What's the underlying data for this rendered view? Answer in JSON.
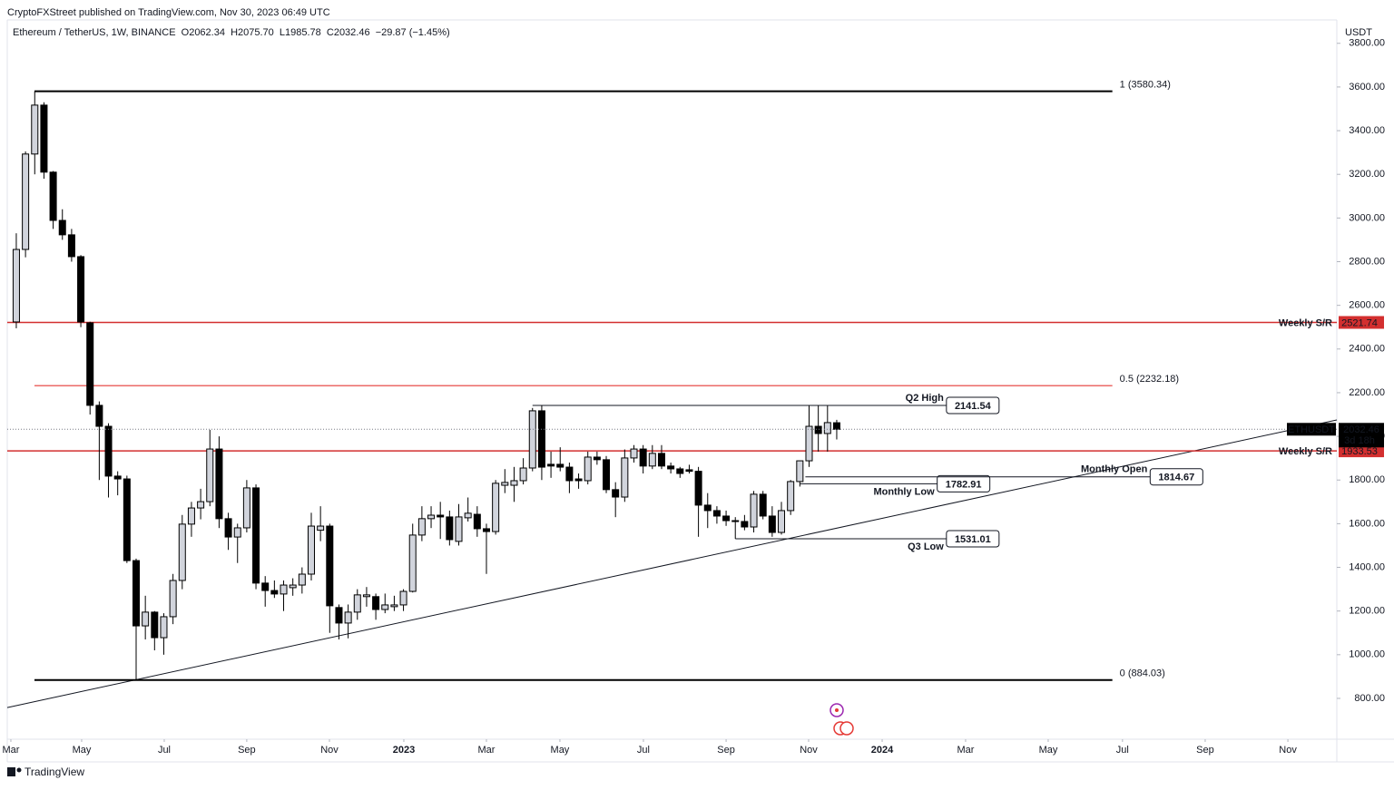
{
  "publisher": "CryptoFXStreet published on TradingView.com, Nov 30, 2023 06:49 UTC",
  "brand": "TradingView",
  "chart_data": {
    "type": "candlestick",
    "legend_text": "Ethereum / TetherUS, 1W, BINANCE  O2062.34  H2075.70  L1985.78  C2032.46  −29.87 (−1.45%)",
    "currency": "USDT",
    "symbol": "ETHUSDT",
    "countdown": "3d 18h",
    "x": [
      0,
      1,
      2,
      3,
      4,
      5,
      6,
      7,
      8,
      9,
      10,
      11,
      12,
      13,
      14,
      15,
      16,
      17,
      18,
      19,
      20,
      21,
      22,
      23,
      24,
      25,
      26,
      27,
      28,
      29,
      30,
      31,
      32,
      33,
      34,
      35,
      36,
      37,
      38,
      39,
      40,
      41,
      42,
      43,
      44,
      45,
      46,
      47,
      48,
      49,
      50,
      51,
      52,
      53,
      54,
      55,
      56,
      57,
      58,
      59,
      60,
      61,
      62,
      63,
      64,
      65,
      66,
      67,
      68,
      69,
      70,
      71,
      72,
      73,
      74,
      75,
      76,
      77,
      78,
      79,
      80,
      81,
      82,
      83,
      84,
      85,
      86,
      87,
      88,
      89
    ],
    "open": [
      2524,
      2856,
      3293,
      3517,
      3210,
      2989,
      2923,
      2823,
      2520,
      2142,
      2046,
      1818,
      1805,
      1431,
      1132,
      1195,
      1078,
      1174,
      1340,
      1598,
      1672,
      1701,
      1942,
      1623,
      1539,
      1581,
      1764,
      1328,
      1294,
      1278,
      1307,
      1319,
      1369,
      1570,
      1589,
      1216,
      1145,
      1195,
      1266,
      1266,
      1207,
      1220,
      1228,
      1290,
      1548,
      1623,
      1639,
      1631,
      1519,
      1627,
      1643,
      1577,
      1564,
      1776,
      1776,
      1797,
      1855,
      2117,
      1872,
      1872,
      1859,
      1805,
      1797,
      1905,
      1893,
      1756,
      1722,
      1901,
      1942,
      1864,
      1922,
      1864,
      1851,
      1847,
      1840,
      1685,
      1660,
      1635,
      1614,
      1610,
      1585,
      1735,
      1635,
      1560,
      1660,
      1793,
      1888,
      2046,
      2013,
      2062.34
    ],
    "high": [
      2930,
      3305,
      3580,
      3530,
      3215,
      3040,
      2950,
      2830,
      2525,
      2160,
      2060,
      1840,
      1820,
      1440,
      1270,
      1200,
      1190,
      1370,
      1640,
      1700,
      1760,
      2030,
      2000,
      1650,
      1600,
      1800,
      1780,
      1360,
      1340,
      1340,
      1350,
      1400,
      1650,
      1680,
      1600,
      1230,
      1230,
      1300,
      1310,
      1280,
      1280,
      1270,
      1300,
      1600,
      1680,
      1680,
      1700,
      1660,
      1690,
      1720,
      1680,
      1600,
      1800,
      1850,
      1860,
      1900,
      2130,
      2141.54,
      1930,
      1950,
      1880,
      1830,
      1930,
      1930,
      1910,
      1790,
      1940,
      1960,
      1960,
      1960,
      1960,
      1880,
      1860,
      1870,
      1860,
      1740,
      1680,
      1660,
      1630,
      1640,
      1750,
      1750,
      1680,
      1700,
      1800,
      1870,
      2141,
      2141,
      2140,
      2075.7
    ],
    "low": [
      2495,
      2820,
      3200,
      3180,
      2950,
      2900,
      2800,
      2500,
      2100,
      1800,
      1720,
      1730,
      1420,
      884.03,
      1070,
      1020,
      1000,
      1140,
      1300,
      1540,
      1620,
      1680,
      1580,
      1480,
      1420,
      1560,
      1300,
      1220,
      1260,
      1200,
      1270,
      1280,
      1340,
      1520,
      1100,
      1070,
      1075,
      1160,
      1220,
      1160,
      1190,
      1200,
      1200,
      1285,
      1520,
      1580,
      1530,
      1500,
      1500,
      1610,
      1540,
      1370,
      1550,
      1740,
      1700,
      1780,
      1840,
      1800,
      1810,
      1840,
      1740,
      1760,
      1780,
      1870,
      1740,
      1630,
      1700,
      1880,
      1830,
      1850,
      1850,
      1830,
      1810,
      1830,
      1540,
      1580,
      1600,
      1590,
      1531.01,
      1570,
      1560,
      1620,
      1540,
      1550,
      1640,
      1770,
      1860,
      1930,
      1930,
      1985.78
    ],
    "close": [
      2856,
      3293,
      3517,
      3210,
      2989,
      2923,
      2823,
      2524,
      2142,
      2046,
      1818,
      1805,
      1431,
      1132,
      1195,
      1078,
      1174,
      1340,
      1598,
      1672,
      1701,
      1942,
      1623,
      1539,
      1581,
      1764,
      1328,
      1294,
      1278,
      1319,
      1319,
      1369,
      1589,
      1589,
      1224,
      1145,
      1195,
      1274,
      1274,
      1207,
      1228,
      1228,
      1290,
      1548,
      1623,
      1639,
      1631,
      1527,
      1631,
      1648,
      1577,
      1564,
      1785,
      1789,
      1797,
      1855,
      2117,
      1859,
      1864,
      1859,
      1797,
      1797,
      1905,
      1893,
      1756,
      1722,
      1901,
      1942,
      1864,
      1922,
      1864,
      1851,
      1830,
      1840,
      1685,
      1660,
      1635,
      1614,
      1610,
      1585,
      1735,
      1635,
      1560,
      1660,
      1793,
      1888,
      2046,
      2013,
      2063,
      2032.46
    ],
    "up_color": "#d1d4dc",
    "down_color": "#000000",
    "xlim": [
      -0.98,
      143.25
    ],
    "xticks": [
      {
        "value": -0.59,
        "label": "Mar"
      },
      {
        "value": 7.09,
        "label": "May"
      },
      {
        "value": 16.05,
        "label": "Jul"
      },
      {
        "value": 25.0,
        "label": "Sep"
      },
      {
        "value": 33.97,
        "label": "Nov"
      },
      {
        "value": 42.04,
        "label": "2023"
      },
      {
        "value": 51.0,
        "label": "Mar"
      },
      {
        "value": 58.97,
        "label": "May"
      },
      {
        "value": 68.03,
        "label": "Jul"
      },
      {
        "value": 77.0,
        "label": "Sep"
      },
      {
        "value": 85.95,
        "label": "Nov"
      },
      {
        "value": 93.93,
        "label": "2024"
      },
      {
        "value": 102.98,
        "label": "Mar"
      },
      {
        "value": 111.94,
        "label": "May"
      },
      {
        "value": 120.0,
        "label": "Jul"
      },
      {
        "value": 128.97,
        "label": "Sep"
      },
      {
        "value": 137.94,
        "label": "Nov"
      }
    ],
    "ylim": [
      613,
      3907
    ],
    "yticks": [
      {
        "value": 800,
        "label": "800.00"
      },
      {
        "value": 1000,
        "label": "1000.00"
      },
      {
        "value": 1200,
        "label": "1200.00"
      },
      {
        "value": 1400,
        "label": "1400.00"
      },
      {
        "value": 1600,
        "label": "1600.00"
      },
      {
        "value": 1800,
        "label": "1800.00"
      },
      {
        "value": 2000,
        "label": "2000.00"
      },
      {
        "value": 2200,
        "label": "2200.00"
      },
      {
        "value": 2400,
        "label": "2400.00"
      },
      {
        "value": 2600,
        "label": "2600.00"
      },
      {
        "value": 2800,
        "label": "2800.00"
      },
      {
        "value": 3000,
        "label": "3000.00"
      },
      {
        "value": 3200,
        "label": "3200.00"
      },
      {
        "value": 3400,
        "label": "3400.00"
      },
      {
        "value": 3600,
        "label": "3600.00"
      },
      {
        "value": 3800,
        "label": "3800.00"
      }
    ],
    "fib_levels": [
      {
        "label": "1 (3580.34)",
        "value": 3580.34,
        "color": "#000000",
        "x_start": 1.97,
        "x_end": 118.9
      },
      {
        "label": "0.5 (2232.18)",
        "value": 2232.18,
        "color": "#e53935",
        "x_start": 1.97,
        "x_end": 118.9
      },
      {
        "label": "0 (884.03)",
        "value": 884.03,
        "color": "#000000",
        "x_start": 1.97,
        "x_end": 118.9
      }
    ],
    "sr_lines": [
      {
        "label": "Weekly S/R",
        "value": 2521.74,
        "color": "#d32f2f"
      },
      {
        "label": "Weekly S/R",
        "value": 1933.53,
        "color": "#d32f2f"
      }
    ],
    "levels": [
      {
        "label": "Q2 High",
        "value": 2141.54,
        "x_start": 56.0,
        "x_end": 100.9,
        "label_color": "#2962ff",
        "label_side": "above"
      },
      {
        "label": "Monthly Low",
        "value": 1782.91,
        "x_start": 85.0,
        "x_end": 99.9,
        "label_color": "#9c27b0",
        "label_side": "below"
      },
      {
        "label": "Monthly Open",
        "value": 1814.67,
        "x_start": 85.6,
        "x_end": 123.0,
        "label_color": "#9c27b0",
        "label_side": "above"
      },
      {
        "label": "Q3 Low",
        "value": 1531.01,
        "x_start": 78.0,
        "x_end": 100.9,
        "label_color": "#2962ff",
        "label_side": "below"
      }
    ],
    "trendline": {
      "x": [
        -0.98,
        143.25
      ],
      "y": [
        758,
        2075
      ]
    }
  }
}
